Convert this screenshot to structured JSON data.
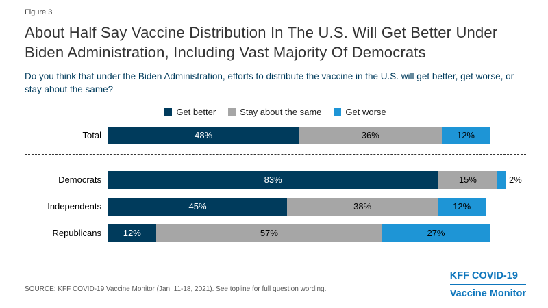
{
  "figure_label": "Figure 3",
  "title": "About Half Say Vaccine Distribution In The U.S. Will Get Better Under Biden Administration, Including Vast Majority Of Democrats",
  "subtitle": "Do you think that under the Biden Administration, efforts to distribute the vaccine in the U.S. will get better, get worse, or stay about the same?",
  "legend": [
    {
      "label": "Get better",
      "color": "#003B5C"
    },
    {
      "label": "Stay about the same",
      "color": "#A6A6A6"
    },
    {
      "label": "Get worse",
      "color": "#1E95D6"
    }
  ],
  "chart_data": {
    "type": "bar",
    "orientation": "horizontal-stacked",
    "title": "About Half Say Vaccine Distribution In The U.S. Will Get Better Under Biden Administration, Including Vast Majority Of Democrats",
    "categories": [
      "Total",
      "Democrats",
      "Independents",
      "Republicans"
    ],
    "series": [
      {
        "name": "Get better",
        "values": [
          48,
          83,
          45,
          12
        ],
        "color": "#003B5C",
        "label_color": "#ffffff"
      },
      {
        "name": "Stay about the same",
        "values": [
          36,
          15,
          38,
          57
        ],
        "color": "#A6A6A6",
        "label_color": "#000000"
      },
      {
        "name": "Get worse",
        "values": [
          12,
          2,
          12,
          27
        ],
        "color": "#1E95D6",
        "label_color": "#000000"
      }
    ],
    "xlim": [
      0,
      100
    ],
    "value_suffix": "%",
    "legend_position": "top",
    "grid": false,
    "separator_after_category": "Total",
    "outside_label_max": 3
  },
  "source": "SOURCE: KFF COVID-19 Vaccine Monitor (Jan. 11-18, 2021). See topline for full question wording.",
  "logo": {
    "line1": "KFF COVID-19",
    "line2": "Vaccine Monitor",
    "color": "#0E76BC"
  }
}
